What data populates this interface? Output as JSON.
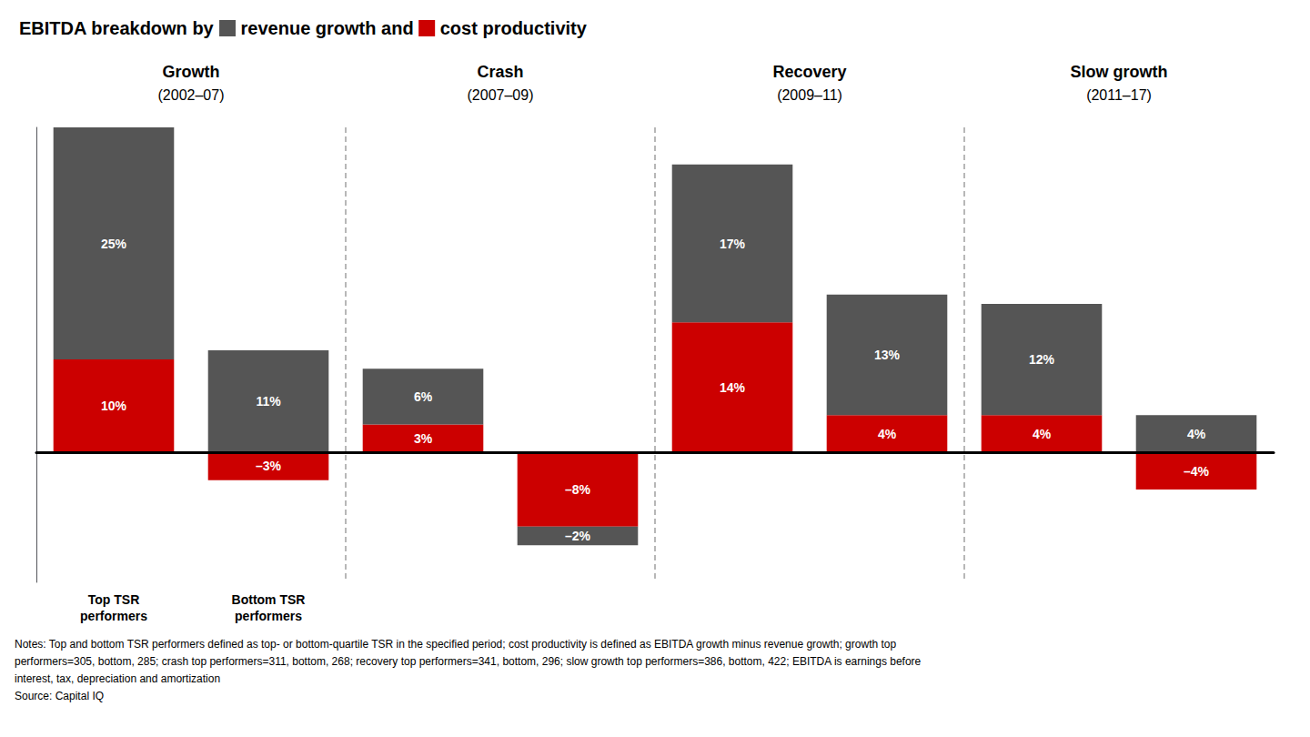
{
  "chart_data": {
    "type": "bar",
    "title": "EBITDA breakdown by revenue growth and cost productivity",
    "categories": [
      "Top TSR\nperformers",
      "Bottom TSR\nperformers",
      null,
      null,
      null,
      null,
      null,
      null
    ],
    "series": [
      {
        "name": "revenue growth",
        "color": "#555555",
        "values": [
          25,
          11,
          6,
          -2,
          17,
          13,
          12,
          4
        ],
        "value_labels": [
          "25%",
          "11%",
          "6%",
          "–2%",
          "17%",
          "13%",
          "12%",
          "4%"
        ]
      },
      {
        "name": "cost productivity",
        "color": "#cc0000",
        "values": [
          10,
          -3,
          3,
          -8,
          14,
          4,
          4,
          -4
        ],
        "value_labels": [
          "10%",
          "–3%",
          "3%",
          "–8%",
          "14%",
          "4%",
          "4%",
          "–4%"
        ]
      }
    ],
    "stacked": true,
    "data_labels": true,
    "ylim": [
      -14,
      35
    ],
    "tick_labels": "x",
    "grid": false,
    "periods": [
      {
        "name": "Growth",
        "years": "(2002–07)"
      },
      {
        "name": "Crash",
        "years": "(2007–09)"
      },
      {
        "name": "Recovery",
        "years": "(2009–11)"
      },
      {
        "name": "Slow growth",
        "years": "(2011–17)"
      }
    ],
    "notes": [
      "Notes: Top and bottom TSR performers defined as top- or bottom-quartile TSR in the specified period; cost productivity is defined as EBITDA growth minus revenue growth; growth top",
      "performers=305, bottom, 285; crash top performers=311, bottom, 268; recovery top performers=341, bottom, 296; slow growth top performers=386, bottom, 422; EBITDA is earnings before",
      "interest, tax, depreciation and amortization"
    ],
    "source": "Source: Capital IQ"
  }
}
